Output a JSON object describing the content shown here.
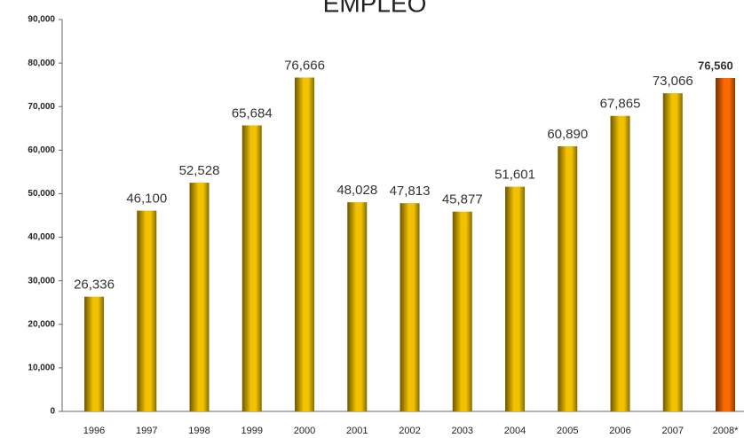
{
  "chart_data": {
    "type": "bar",
    "title": "EMPLEO",
    "categories": [
      "1996",
      "1997",
      "1998",
      "1999",
      "2000",
      "2001",
      "2002",
      "2003",
      "2004",
      "2005",
      "2006",
      "2007",
      "2008*"
    ],
    "values": [
      26336,
      46100,
      52528,
      65684,
      76666,
      48028,
      47813,
      45877,
      51601,
      60890,
      67865,
      73066,
      76560
    ],
    "value_labels": [
      "26,336",
      "46,100",
      "52,528",
      "65,684",
      "76,666",
      "48,028",
      "47,813",
      "45,877",
      "51,601",
      "60,890",
      "67,865",
      "73,066",
      "76,560"
    ],
    "colors": [
      "#f2c200",
      "#f2c200",
      "#f2c200",
      "#f2c200",
      "#f2c200",
      "#f2c200",
      "#f2c200",
      "#f2c200",
      "#f2c200",
      "#f2c200",
      "#f2c200",
      "#f2c200",
      "#ff6a00"
    ],
    "highlight": "2008*",
    "ylim": [
      0,
      90000
    ],
    "yticks": [
      0,
      {
        "value": 10000,
        "label": "10,000"
      },
      {
        "value": 20000,
        "label": "20,000"
      },
      {
        "value": 30000,
        "label": "30,000"
      },
      {
        "value": 40000,
        "label": "40,000"
      },
      {
        "value": 50000,
        "label": "50,000"
      },
      {
        "value": 60000,
        "label": "60,000"
      },
      {
        "value": 70000,
        "label": "70,000"
      },
      {
        "value": 80000,
        "label": "80,000"
      },
      {
        "value": 90000,
        "label": "90,000"
      }
    ],
    "grid": false
  }
}
